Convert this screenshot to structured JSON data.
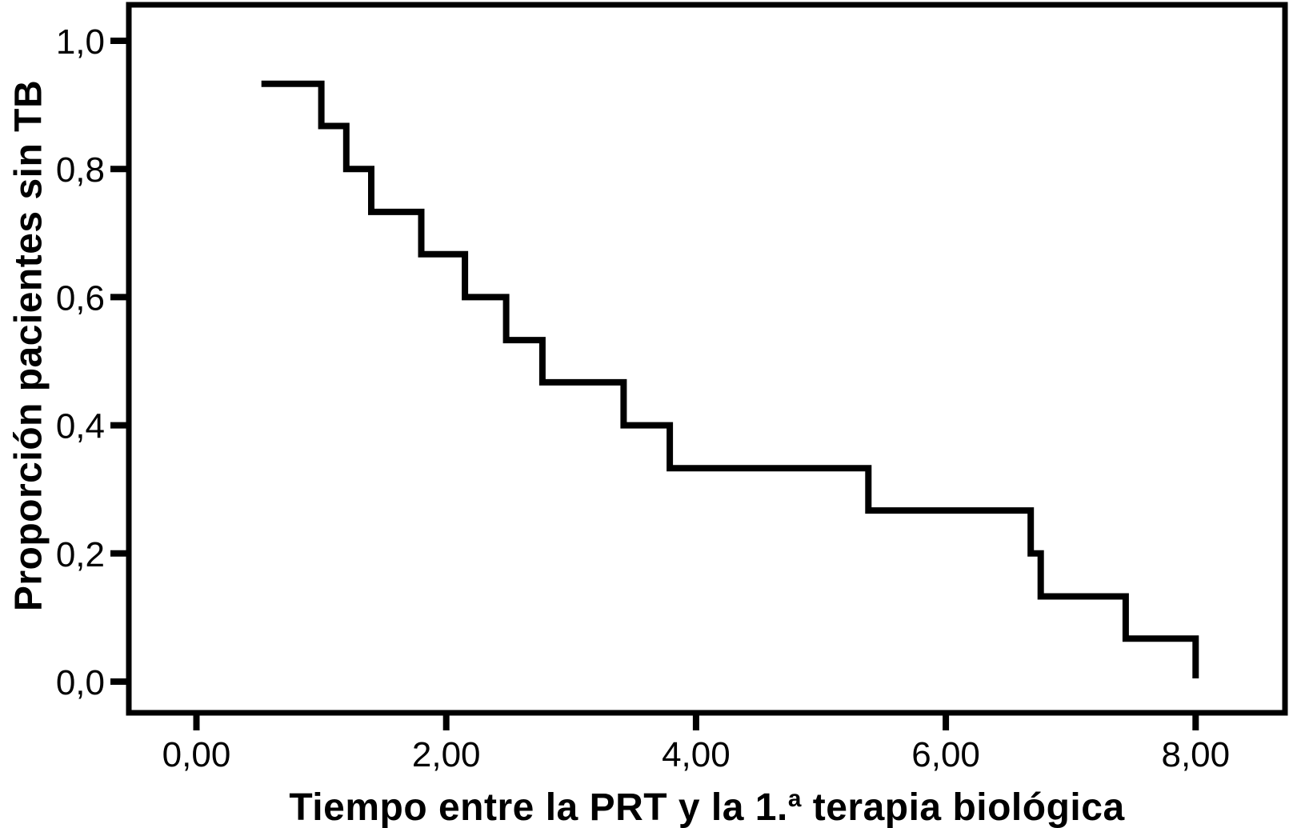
{
  "figure": {
    "background_color": "#ffffff",
    "line_color": "#000000",
    "text_color": "#000000"
  },
  "chart": {
    "y_axis": {
      "label": "Proporción pacientes sin TB",
      "tick_labels": [
        "0,0",
        "0,2",
        "0,4",
        "0,6",
        "0,8",
        "1,0"
      ]
    },
    "x_axis": {
      "label": "Tiempo entre la PRT y la 1.ª terapia biológica",
      "label_parts": {
        "pre": "Tiempo entre la PRT y la 1.",
        "sup": "a",
        "post": " terapia biológica"
      },
      "tick_labels": [
        "0,00",
        "2,00",
        "4,00",
        "6,00",
        "8,00"
      ]
    }
  },
  "chart_data": {
    "type": "line",
    "subtype": "step-survival",
    "title": "",
    "xlabel": "Tiempo entre la PRT y la 1.ª terapia biológica",
    "ylabel": "Proporción pacientes sin TB",
    "xlim": [
      -0.54,
      8.71
    ],
    "ylim": [
      -0.05,
      1.06
    ],
    "grid": false,
    "legend": null,
    "line_color": "#000000",
    "x_ticks": {
      "values": [
        0,
        2,
        4,
        6,
        8
      ],
      "labels": [
        "0,00",
        "2,00",
        "4,00",
        "6,00",
        "8,00"
      ]
    },
    "y_ticks": {
      "values": [
        0,
        0.2,
        0.4,
        0.6,
        0.8,
        1.0
      ],
      "labels": [
        "0,0",
        "0,2",
        "0,4",
        "0,6",
        "0,8",
        "1,0"
      ]
    },
    "start": {
      "x": 0.52,
      "y": 0.933
    },
    "events": [
      {
        "x": 1.0,
        "y": 0.867
      },
      {
        "x": 1.2,
        "y": 0.8
      },
      {
        "x": 1.4,
        "y": 0.733
      },
      {
        "x": 1.8,
        "y": 0.667
      },
      {
        "x": 2.15,
        "y": 0.6
      },
      {
        "x": 2.48,
        "y": 0.533
      },
      {
        "x": 2.77,
        "y": 0.467
      },
      {
        "x": 3.42,
        "y": 0.4
      },
      {
        "x": 3.79,
        "y": 0.333
      },
      {
        "x": 5.38,
        "y": 0.267
      },
      {
        "x": 6.68,
        "y": 0.2
      },
      {
        "x": 6.76,
        "y": 0.133
      },
      {
        "x": 7.44,
        "y": 0.067
      },
      {
        "x": 8.0,
        "y": 0.005
      }
    ]
  }
}
